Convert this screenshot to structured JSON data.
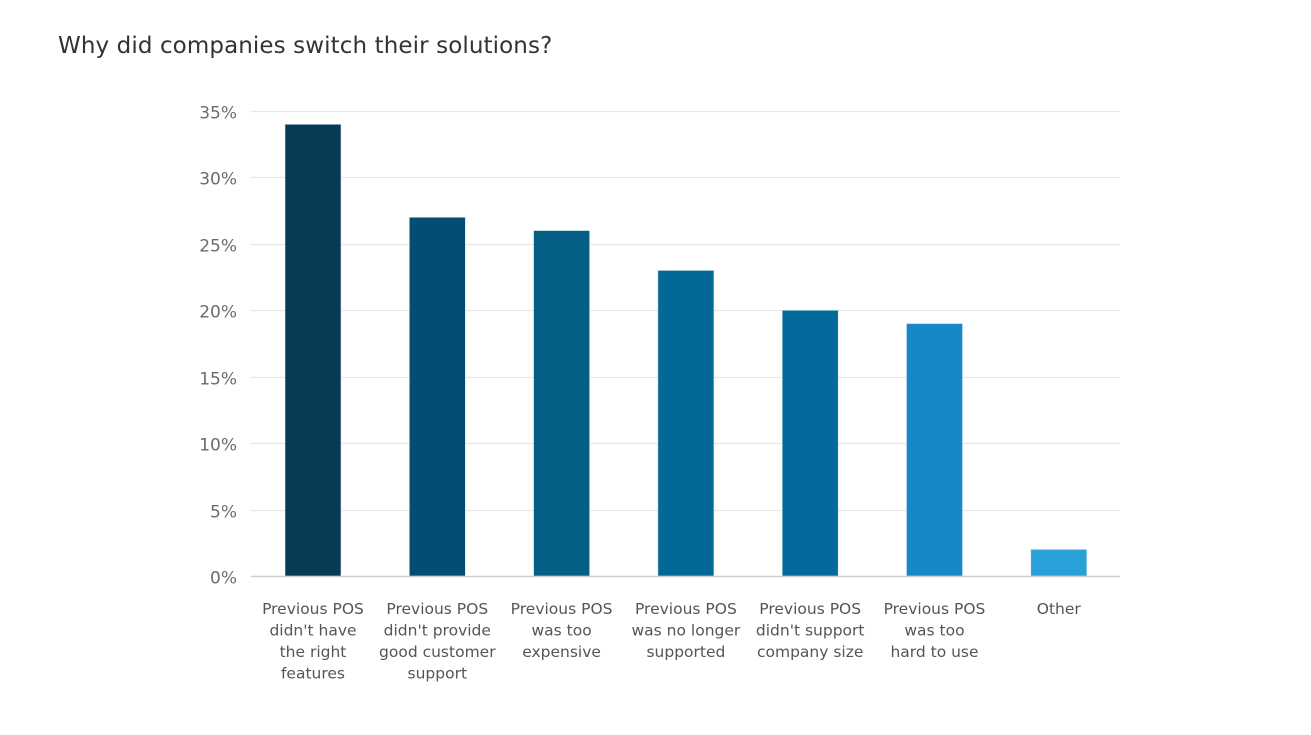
{
  "chart_data": {
    "type": "bar",
    "title": "Why did companies switch their solutions?",
    "xlabel": "",
    "ylabel": "",
    "ylim": [
      0,
      35
    ],
    "yticks": [
      "0%",
      "5%",
      "10%",
      "15%",
      "20%",
      "25%",
      "30%",
      "35%"
    ],
    "ytick_values": [
      0,
      5,
      10,
      15,
      20,
      25,
      30,
      35
    ],
    "grid": true,
    "legend": "none",
    "categories": [
      [
        "Previous POS",
        "didn't have",
        "the right",
        "features"
      ],
      [
        "Previous POS",
        "didn't provide",
        "good customer",
        "support"
      ],
      [
        "Previous POS",
        "was too",
        "expensive"
      ],
      [
        "Previous POS",
        "was no longer",
        "supported"
      ],
      [
        "Previous POS",
        "didn't support",
        "company size"
      ],
      [
        "Previous POS",
        "was too",
        "hard to use"
      ],
      [
        "Other"
      ]
    ],
    "values": [
      34,
      27,
      26,
      23,
      20,
      19,
      2
    ],
    "unit": "%",
    "colors": [
      "#083a56",
      "#024d71",
      "#045e86",
      "#026897",
      "#036a9b",
      "#1787c5",
      "#2aa0d8"
    ],
    "grid_color": "#e6e6e6",
    "axis_color": "#cccccc"
  }
}
